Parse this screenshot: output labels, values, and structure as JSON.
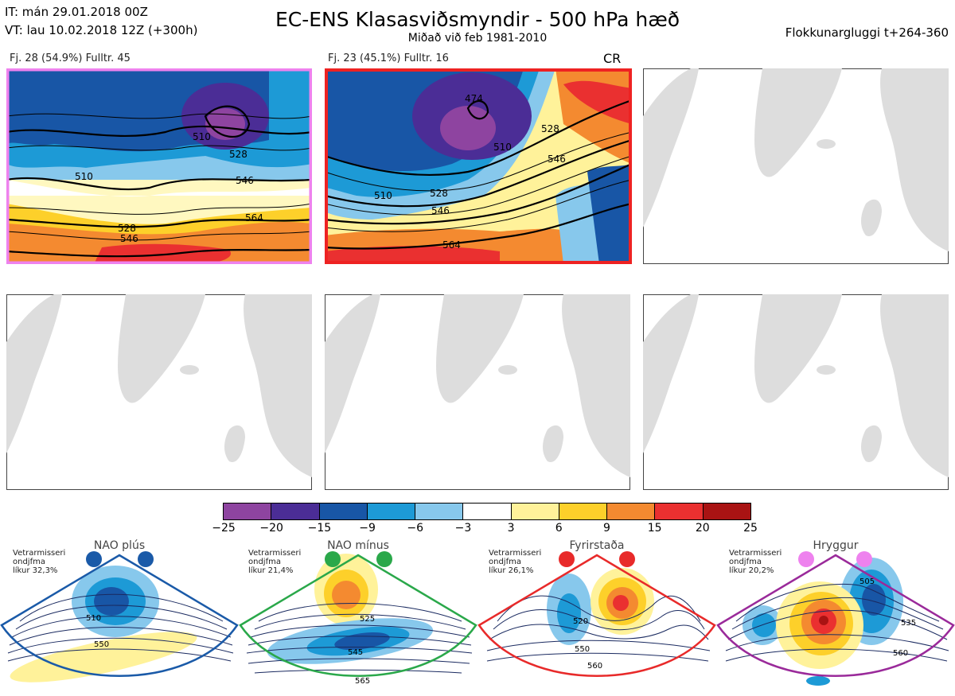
{
  "header": {
    "it_line": "IT: mán 29.01.2018 00Z",
    "vt_line": "VT: lau 10.02.2018 12Z  (+300h)",
    "title": "EC-ENS Klasasviðsmyndir - 500 hPa hæð",
    "subtitle": "Miðað við feb 1981-2010",
    "window": "Flokkunargluggi t+264-360"
  },
  "clusters": [
    {
      "label": "Fj. 28 (54.9%)   Fulltr. 45",
      "frame_color": "#ee82ee",
      "contours": [
        "510",
        "528",
        "546",
        "564",
        "546",
        "510",
        "528"
      ]
    },
    {
      "label": "Fj. 23 (45.1%)   Fulltr. 16",
      "frame_color": "#ee2222",
      "regime_code": "CR",
      "contours": [
        "474",
        "510",
        "528",
        "546",
        "564",
        "546",
        "528",
        "510"
      ]
    }
  ],
  "colorbar": {
    "colors": [
      "#8e44a0",
      "#4b2d96",
      "#1856a6",
      "#1d9ad6",
      "#87c8ec",
      "#ffffff",
      "#fff29a",
      "#fdd02a",
      "#f48a30",
      "#ea3030",
      "#a91313"
    ],
    "ticks": [
      "−25",
      "−20",
      "−15",
      "−9",
      "−6",
      "−3",
      "3",
      "6",
      "9",
      "15",
      "20",
      "25"
    ]
  },
  "regimes": [
    {
      "name": "NAO plús",
      "info": [
        "Vetrarmisseri",
        "ondjfma",
        "líkur 32,3%"
      ],
      "color": "#1a5aa8",
      "contours": [
        "510",
        "550"
      ]
    },
    {
      "name": "NAO mínus",
      "info": [
        "Vetrarmisseri",
        "ondjfma",
        "líkur 21,4%"
      ],
      "color": "#2aa84a",
      "contours": [
        "525",
        "545",
        "565"
      ]
    },
    {
      "name": "Fyrirstaða",
      "info": [
        "Vetrarmisseri",
        "ondjfma",
        "líkur 26,1%"
      ],
      "color": "#e82a2a",
      "contours": [
        "520",
        "550",
        "560"
      ]
    },
    {
      "name": "Hryggur",
      "info": [
        "Vetrarmisseri",
        "ondjfma",
        "líkur 20,2%"
      ],
      "color": "#9a2a9a",
      "contours": [
        "505",
        "535",
        "560"
      ]
    }
  ]
}
